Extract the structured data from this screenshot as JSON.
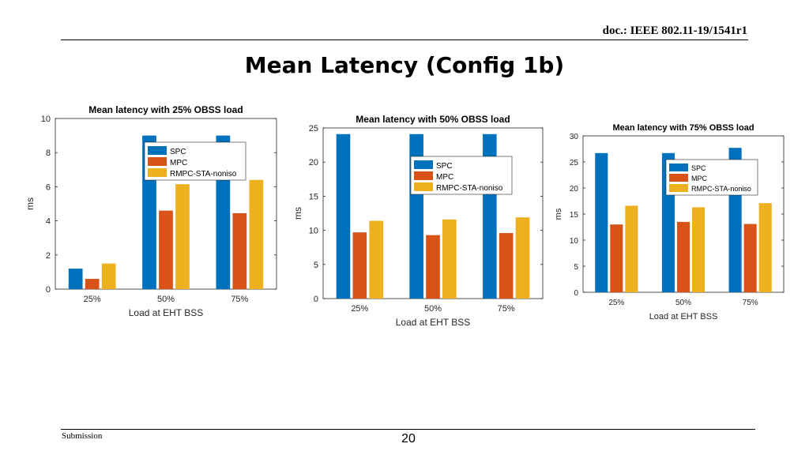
{
  "header": {
    "doc_ref": "doc.: IEEE 802.11-19/1541r1"
  },
  "slide": {
    "title": "Mean Latency (Config 1b)"
  },
  "footer": {
    "left": "Submission",
    "page": "20"
  },
  "colors": {
    "SPC": "#0072BD",
    "MPC": "#D95319",
    "RMPC-STA-noniso": "#EDB120"
  },
  "chart_data": [
    {
      "type": "bar",
      "title": "Mean latency with 25% OBSS load",
      "xlabel": "Load at EHT BSS",
      "ylabel": "ms",
      "categories": [
        "25%",
        "50%",
        "75%"
      ],
      "ylim": [
        0,
        10
      ],
      "yticks": [
        0,
        2,
        4,
        6,
        8,
        10
      ],
      "legend_loc": "top-center",
      "series": [
        {
          "name": "SPC",
          "values": [
            1.2,
            9.0,
            9.0
          ]
        },
        {
          "name": "MPC",
          "values": [
            0.6,
            4.6,
            4.45
          ]
        },
        {
          "name": "RMPC-STA-noniso",
          "values": [
            1.5,
            6.15,
            6.4
          ]
        }
      ]
    },
    {
      "type": "bar",
      "title": "Mean latency with 50% OBSS load",
      "xlabel": "Load at EHT BSS",
      "ylabel": "ms",
      "categories": [
        "25%",
        "50%",
        "75%"
      ],
      "ylim": [
        0,
        25
      ],
      "yticks": [
        0,
        5,
        10,
        15,
        20,
        25
      ],
      "legend_loc": "middle-right",
      "series": [
        {
          "name": "SPC",
          "values": [
            24.1,
            24.1,
            24.1
          ]
        },
        {
          "name": "MPC",
          "values": [
            9.7,
            9.3,
            9.6
          ]
        },
        {
          "name": "RMPC-STA-noniso",
          "values": [
            11.4,
            11.6,
            11.9
          ]
        }
      ]
    },
    {
      "type": "bar",
      "title": "Mean latency with 75% OBSS load",
      "xlabel": "Load at EHT BSS",
      "ylabel": "ms",
      "categories": [
        "25%",
        "50%",
        "75%"
      ],
      "ylim": [
        0,
        30
      ],
      "yticks": [
        0,
        5,
        10,
        15,
        20,
        25,
        30
      ],
      "legend_loc": "top-right",
      "series": [
        {
          "name": "SPC",
          "values": [
            26.7,
            26.7,
            27.7
          ]
        },
        {
          "name": "MPC",
          "values": [
            13.0,
            13.5,
            13.1
          ]
        },
        {
          "name": "RMPC-STA-noniso",
          "values": [
            16.6,
            16.3,
            17.1
          ]
        }
      ]
    }
  ]
}
